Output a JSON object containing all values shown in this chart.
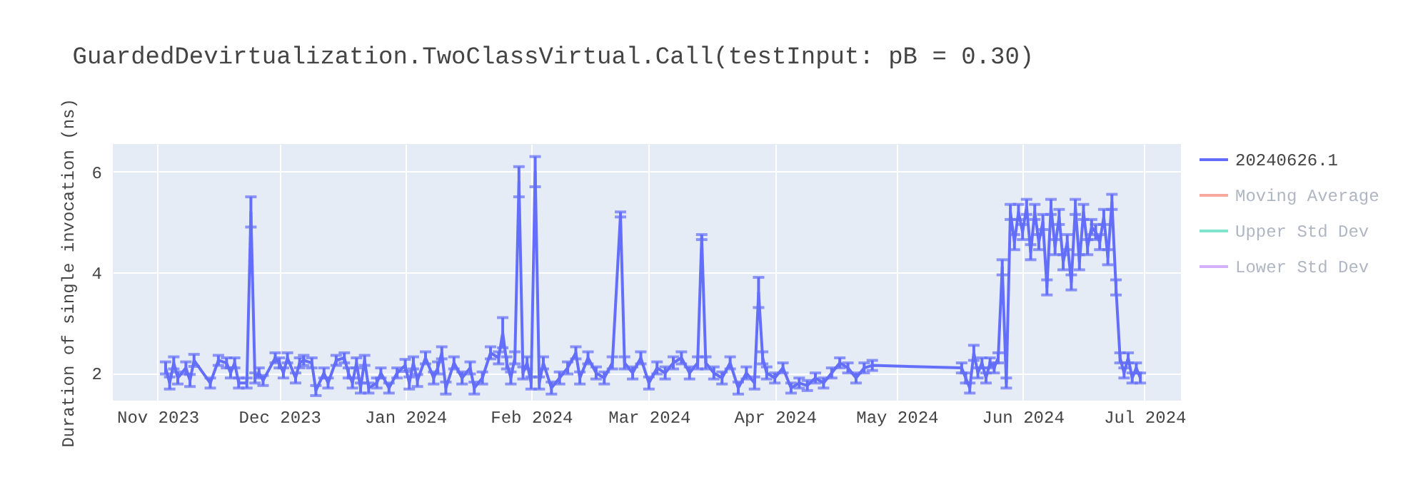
{
  "chart_data": {
    "type": "line",
    "title": "GuardedDevirtualization.TwoClassVirtual.Call(testInput: pB = 0.30)",
    "ylabel": "Duration of single invocation (ns)",
    "x": [
      "2023-11-03",
      "2023-11-04",
      "2023-11-05",
      "2023-11-06",
      "2023-11-08",
      "2023-11-09",
      "2023-11-10",
      "2023-11-14",
      "2023-11-16",
      "2023-11-18",
      "2023-11-19",
      "2023-11-20",
      "2023-11-21",
      "2023-11-23",
      "2023-11-24",
      "2023-11-25",
      "2023-11-26",
      "2023-11-27",
      "2023-11-30",
      "2023-12-01",
      "2023-12-02",
      "2023-12-03",
      "2023-12-05",
      "2023-12-06",
      "2023-12-07",
      "2023-12-09",
      "2023-12-10",
      "2023-12-12",
      "2023-12-13",
      "2023-12-15",
      "2023-12-17",
      "2023-12-18",
      "2023-12-19",
      "2023-12-20",
      "2023-12-21",
      "2023-12-22",
      "2023-12-23",
      "2023-12-25",
      "2023-12-26",
      "2023-12-28",
      "2023-12-30",
      "2024-01-01",
      "2024-01-02",
      "2024-01-03",
      "2024-01-04",
      "2024-01-06",
      "2024-01-08",
      "2024-01-09",
      "2024-01-10",
      "2024-01-11",
      "2024-01-13",
      "2024-01-15",
      "2024-01-17",
      "2024-01-18",
      "2024-01-20",
      "2024-01-22",
      "2024-01-24",
      "2024-01-25",
      "2024-01-26",
      "2024-01-27",
      "2024-01-28",
      "2024-01-29",
      "2024-01-30",
      "2024-01-31",
      "2024-02-01",
      "2024-02-02",
      "2024-02-03",
      "2024-02-04",
      "2024-02-06",
      "2024-02-08",
      "2024-02-10",
      "2024-02-12",
      "2024-02-13",
      "2024-02-15",
      "2024-02-17",
      "2024-02-19",
      "2024-02-21",
      "2024-02-23",
      "2024-02-24",
      "2024-02-26",
      "2024-02-28",
      "2024-03-01",
      "2024-03-03",
      "2024-03-05",
      "2024-03-07",
      "2024-03-09",
      "2024-03-11",
      "2024-03-13",
      "2024-03-14",
      "2024-03-15",
      "2024-03-17",
      "2024-03-19",
      "2024-03-21",
      "2024-03-23",
      "2024-03-25",
      "2024-03-27",
      "2024-03-28",
      "2024-03-29",
      "2024-03-30",
      "2024-04-01",
      "2024-04-03",
      "2024-04-05",
      "2024-04-07",
      "2024-04-09",
      "2024-04-11",
      "2024-04-13",
      "2024-04-15",
      "2024-04-17",
      "2024-04-19",
      "2024-04-21",
      "2024-04-23",
      "2024-04-25",
      "2024-05-17",
      "2024-05-18",
      "2024-05-19",
      "2024-05-20",
      "2024-05-21",
      "2024-05-22",
      "2024-05-23",
      "2024-05-24",
      "2024-05-25",
      "2024-05-26",
      "2024-05-27",
      "2024-05-28",
      "2024-05-29",
      "2024-05-30",
      "2024-05-31",
      "2024-06-01",
      "2024-06-02",
      "2024-06-03",
      "2024-06-04",
      "2024-06-05",
      "2024-06-06",
      "2024-06-07",
      "2024-06-08",
      "2024-06-09",
      "2024-06-10",
      "2024-06-11",
      "2024-06-12",
      "2024-06-13",
      "2024-06-14",
      "2024-06-15",
      "2024-06-16",
      "2024-06-17",
      "2024-06-18",
      "2024-06-19",
      "2024-06-20",
      "2024-06-21",
      "2024-06-22",
      "2024-06-23",
      "2024-06-24",
      "2024-06-25",
      "2024-06-26",
      "2024-06-27",
      "2024-06-28",
      "2024-06-29",
      "2024-06-30"
    ],
    "series": [
      {
        "name": "20240626.1",
        "color": "#636efa",
        "values": [
          2.1,
          1.8,
          2.2,
          1.9,
          2.1,
          1.85,
          2.25,
          1.8,
          2.25,
          2.2,
          2.0,
          2.2,
          1.8,
          1.8,
          5.2,
          1.9,
          2.0,
          1.85,
          2.3,
          2.2,
          2.0,
          2.3,
          1.9,
          2.2,
          2.25,
          2.2,
          1.65,
          2.0,
          1.8,
          2.25,
          2.3,
          2.0,
          1.8,
          2.2,
          1.7,
          2.25,
          1.7,
          1.8,
          2.0,
          1.7,
          2.0,
          2.15,
          1.8,
          2.2,
          1.85,
          2.3,
          1.9,
          2.1,
          2.4,
          1.7,
          2.2,
          1.9,
          2.1,
          1.7,
          1.9,
          2.4,
          2.3,
          2.8,
          2.2,
          1.9,
          2.3,
          5.8,
          2.0,
          2.2,
          1.8,
          6.0,
          1.8,
          2.2,
          1.7,
          1.9,
          2.1,
          2.4,
          1.9,
          2.3,
          2.0,
          1.9,
          2.2,
          5.15,
          2.2,
          2.0,
          2.3,
          1.8,
          2.1,
          2.0,
          2.2,
          2.3,
          2.0,
          2.2,
          4.7,
          2.2,
          2.0,
          1.9,
          2.2,
          1.7,
          2.0,
          1.8,
          3.6,
          2.3,
          2.0,
          1.9,
          2.1,
          1.7,
          1.8,
          1.75,
          1.9,
          1.8,
          2.0,
          2.2,
          2.1,
          1.9,
          2.1,
          2.15,
          2.1,
          1.9,
          1.7,
          2.4,
          2.0,
          2.2,
          1.9,
          2.2,
          2.1,
          2.3,
          4.1,
          1.8,
          5.2,
          4.6,
          5.2,
          4.8,
          5.3,
          4.4,
          5.2,
          4.6,
          5.0,
          3.7,
          5.3,
          4.5,
          5.1,
          4.2,
          4.6,
          3.8,
          5.3,
          4.2,
          5.2,
          4.5,
          4.9,
          4.8,
          4.6,
          5.1,
          4.3,
          5.4,
          3.7,
          2.3,
          2.0,
          2.3,
          1.9,
          2.1,
          1.9
        ],
        "errors": [
          0.12,
          0.12,
          0.12,
          0.12,
          0.12,
          0.12,
          0.12,
          0.1,
          0.1,
          0.1,
          0.1,
          0.1,
          0.1,
          0.1,
          0.3,
          0.1,
          0.1,
          0.1,
          0.1,
          0.1,
          0.1,
          0.1,
          0.1,
          0.1,
          0.1,
          0.1,
          0.1,
          0.1,
          0.1,
          0.1,
          0.1,
          0.1,
          0.1,
          0.1,
          0.1,
          0.1,
          0.1,
          0.1,
          0.1,
          0.1,
          0.1,
          0.12,
          0.12,
          0.12,
          0.12,
          0.12,
          0.12,
          0.12,
          0.12,
          0.12,
          0.12,
          0.12,
          0.12,
          0.12,
          0.12,
          0.12,
          0.12,
          0.3,
          0.12,
          0.12,
          0.12,
          0.3,
          0.12,
          0.12,
          0.12,
          0.3,
          0.12,
          0.12,
          0.12,
          0.12,
          0.12,
          0.12,
          0.12,
          0.12,
          0.12,
          0.12,
          0.12,
          0.05,
          0.12,
          0.12,
          0.12,
          0.12,
          0.12,
          0.12,
          0.12,
          0.12,
          0.12,
          0.12,
          0.05,
          0.12,
          0.12,
          0.12,
          0.12,
          0.12,
          0.12,
          0.12,
          0.3,
          0.12,
          0.12,
          0.1,
          0.1,
          0.1,
          0.1,
          0.1,
          0.1,
          0.1,
          0.1,
          0.1,
          0.1,
          0.1,
          0.1,
          0.1,
          0.1,
          0.1,
          0.1,
          0.15,
          0.1,
          0.1,
          0.1,
          0.1,
          0.1,
          0.1,
          0.15,
          0.1,
          0.15,
          0.15,
          0.15,
          0.15,
          0.15,
          0.15,
          0.15,
          0.15,
          0.15,
          0.15,
          0.15,
          0.15,
          0.15,
          0.15,
          0.15,
          0.15,
          0.15,
          0.15,
          0.15,
          0.15,
          0.15,
          0.15,
          0.15,
          0.15,
          0.15,
          0.15,
          0.15,
          0.1,
          0.1,
          0.1,
          0.1,
          0.1,
          0.1
        ]
      },
      {
        "name": "Moving Average",
        "color": "#ef553b",
        "values": [
          null,
          null,
          null,
          null,
          null,
          null,
          null,
          null,
          null,
          null,
          null,
          null,
          null,
          null,
          null,
          null,
          null,
          null,
          null,
          null,
          null,
          null,
          null,
          null,
          null,
          null,
          null,
          null,
          null,
          null,
          null,
          null,
          null,
          null,
          null,
          null,
          null,
          null,
          null,
          null,
          null,
          null,
          null,
          null,
          null,
          null,
          null,
          null,
          null,
          null,
          null,
          null,
          null,
          null,
          null,
          null,
          null,
          null,
          null,
          null,
          null,
          null,
          null,
          null,
          null,
          null,
          null,
          null,
          null,
          null,
          null,
          null,
          null,
          null,
          null,
          null,
          null,
          null,
          null,
          null,
          null,
          null,
          null,
          null,
          null,
          null,
          null,
          null,
          null,
          null,
          null,
          null,
          null,
          null,
          null,
          null,
          null,
          null,
          null,
          null,
          null,
          null,
          null,
          null,
          null,
          null,
          null,
          null,
          null,
          null,
          null,
          null,
          null,
          null,
          null,
          null,
          null,
          null,
          null,
          null,
          null,
          null,
          null,
          null,
          null,
          null,
          null,
          null,
          null,
          null,
          null,
          null,
          null,
          null,
          null,
          null,
          null,
          null,
          null,
          null,
          null,
          null,
          null,
          null,
          null,
          null,
          null,
          null,
          null,
          null,
          null,
          null,
          null,
          null,
          null,
          null,
          null
        ]
      },
      {
        "name": "Upper Std Dev",
        "color": "#00cc96",
        "values": [
          null,
          null,
          null,
          null,
          null,
          null,
          null,
          null,
          null,
          null,
          null,
          null,
          null,
          null,
          null,
          null,
          null,
          null,
          null,
          null,
          null,
          null,
          null,
          null,
          null,
          null,
          null,
          null,
          null,
          null,
          null,
          null,
          null,
          null,
          null,
          null,
          null,
          null,
          null,
          null,
          null,
          null,
          null,
          null,
          null,
          null,
          null,
          null,
          null,
          null,
          null,
          null,
          null,
          null,
          null,
          null,
          null,
          null,
          null,
          null,
          null,
          null,
          null,
          null,
          null,
          null,
          null,
          null,
          null,
          null,
          null,
          null,
          null,
          null,
          null,
          null,
          null,
          null,
          null,
          null,
          null,
          null,
          null,
          null,
          null,
          null,
          null,
          null,
          null,
          null,
          null,
          null,
          null,
          null,
          null,
          null,
          null,
          null,
          null,
          null,
          null,
          null,
          null,
          null,
          null,
          null,
          null,
          null,
          null,
          null,
          null,
          null,
          null,
          null,
          null,
          null,
          null,
          null,
          null,
          null,
          null,
          null,
          null,
          null,
          null,
          null,
          null,
          null,
          null,
          null,
          null,
          null,
          null,
          null,
          null,
          null,
          null,
          null,
          null,
          null,
          null,
          null,
          null,
          null,
          null,
          null,
          null,
          null,
          null,
          null,
          null,
          null,
          null,
          null,
          null,
          null,
          null
        ]
      },
      {
        "name": "Lower Std Dev",
        "color": "#ab63fa",
        "values": [
          null,
          null,
          null,
          null,
          null,
          null,
          null,
          null,
          null,
          null,
          null,
          null,
          null,
          null,
          null,
          null,
          null,
          null,
          null,
          null,
          null,
          null,
          null,
          null,
          null,
          null,
          null,
          null,
          null,
          null,
          null,
          null,
          null,
          null,
          null,
          null,
          null,
          null,
          null,
          null,
          null,
          null,
          null,
          null,
          null,
          null,
          null,
          null,
          null,
          null,
          null,
          null,
          null,
          null,
          null,
          null,
          null,
          null,
          null,
          null,
          null,
          null,
          null,
          null,
          null,
          null,
          null,
          null,
          null,
          null,
          null,
          null,
          null,
          null,
          null,
          null,
          null,
          null,
          null,
          null,
          null,
          null,
          null,
          null,
          null,
          null,
          null,
          null,
          null,
          null,
          null,
          null,
          null,
          null,
          null,
          null,
          null,
          null,
          null,
          null,
          null,
          null,
          null,
          null,
          null,
          null,
          null,
          null,
          null,
          null,
          null,
          null,
          null,
          null,
          null,
          null,
          null,
          null,
          null,
          null,
          null,
          null,
          null,
          null,
          null,
          null,
          null,
          null,
          null,
          null,
          null,
          null,
          null,
          null,
          null,
          null,
          null,
          null,
          null,
          null,
          null,
          null,
          null,
          null,
          null,
          null,
          null,
          null,
          null,
          null,
          null,
          null,
          null,
          null,
          null,
          null,
          null
        ]
      }
    ],
    "xlim": [
      "2023-10-21",
      "2024-07-10"
    ],
    "xticks": [
      {
        "value": "2023-11-01",
        "label": "Nov 2023"
      },
      {
        "value": "2023-12-01",
        "label": "Dec 2023"
      },
      {
        "value": "2024-01-01",
        "label": "Jan 2024"
      },
      {
        "value": "2024-02-01",
        "label": "Feb 2024"
      },
      {
        "value": "2024-03-01",
        "label": "Mar 2024"
      },
      {
        "value": "2024-04-01",
        "label": "Apr 2024"
      },
      {
        "value": "2024-05-01",
        "label": "May 2024"
      },
      {
        "value": "2024-06-01",
        "label": "Jun 2024"
      },
      {
        "value": "2024-07-01",
        "label": "Jul 2024"
      }
    ],
    "ylim": [
      1.45,
      6.55
    ],
    "yticks": [
      2,
      4,
      6
    ],
    "grid": true,
    "legend": "top right"
  }
}
